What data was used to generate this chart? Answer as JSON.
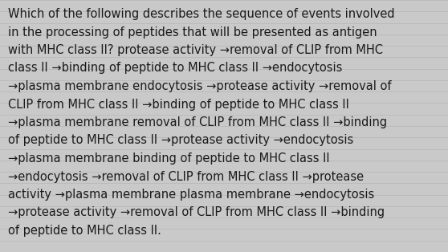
{
  "lines": [
    "Which of the following describes the sequence of events involved",
    "in the processing of peptides that will be presented as antigen",
    "with MHC class II? protease activity →removal of CLIP from MHC",
    "class II →binding of peptide to MHC class II →endocytosis",
    "→plasma membrane endocytosis →protease activity →removal of",
    "CLIP from MHC class II →binding of peptide to MHC class II",
    "→plasma membrane removal of CLIP from MHC class II →binding",
    "of peptide to MHC class II →protease activity →endocytosis",
    "→plasma membrane binding of peptide to MHC class II",
    "→endocytosis →removal of CLIP from MHC class II →protease",
    "activity →plasma membrane plasma membrane →endocytosis",
    "→protease activity →removal of CLIP from MHC class II →binding",
    "of peptide to MHC class II."
  ],
  "background_color": "#c9c9c9",
  "line_color": "#b8b8b8",
  "text_color": "#1a1a1a",
  "font_size": 10.5,
  "fig_width": 5.58,
  "fig_height": 3.14,
  "dpi": 100
}
